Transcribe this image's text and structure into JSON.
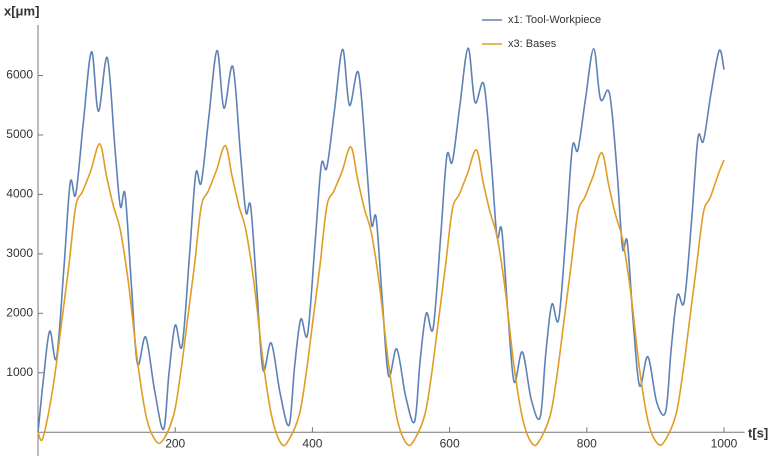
{
  "chart_data": {
    "type": "line",
    "ylabel": "x[μm]",
    "xlabel": "t[s]",
    "xlim": [
      0,
      1030
    ],
    "ylim": [
      -400,
      6850
    ],
    "xticks": [
      200,
      400,
      600,
      800,
      1000
    ],
    "yticks": [
      1000,
      2000,
      3000,
      4000,
      5000,
      6000
    ],
    "legend": "top-right",
    "series": [
      {
        "name": "x1: Tool-Workpiece",
        "color": "#5e81b5",
        "x": [
          0,
          8,
          17,
          27,
          38,
          47,
          55,
          66,
          78,
          88,
          101,
          112,
          120,
          127,
          136,
          145,
          157,
          170,
          183,
          191,
          200,
          210,
          221,
          230,
          238,
          249,
          261,
          271,
          284,
          295,
          303,
          310,
          319,
          328,
          340,
          353,
          366,
          374,
          383,
          393,
          404,
          413,
          421,
          432,
          444,
          454,
          467,
          478,
          486,
          493,
          502,
          511,
          523,
          536,
          549,
          557,
          566,
          576,
          587,
          596,
          604,
          615,
          627,
          637,
          650,
          661,
          669,
          676,
          685,
          694,
          706,
          719,
          732,
          740,
          749,
          759,
          770,
          779,
          787,
          798,
          810,
          820,
          833,
          844,
          852,
          859,
          868,
          877,
          889,
          902,
          915,
          923,
          932,
          942,
          953,
          962,
          970,
          981,
          993,
          1000
        ],
        "values": [
          0,
          900,
          1700,
          1250,
          2800,
          4200,
          4000,
          5200,
          6400,
          5400,
          6300,
          4800,
          3800,
          4000,
          2500,
          1150,
          1600,
          700,
          50,
          1000,
          1800,
          1450,
          3000,
          4350,
          4200,
          5300,
          6420,
          5450,
          6150,
          4700,
          3700,
          3800,
          2400,
          1050,
          1500,
          650,
          120,
          1100,
          1900,
          1650,
          3200,
          4500,
          4450,
          5400,
          6440,
          5500,
          6050,
          4650,
          3500,
          3600,
          2200,
          950,
          1400,
          600,
          180,
          1200,
          2000,
          1750,
          3300,
          4650,
          4550,
          5500,
          6460,
          5550,
          5850,
          4500,
          3300,
          3400,
          2000,
          850,
          1350,
          550,
          250,
          1300,
          2150,
          1900,
          3400,
          4800,
          4750,
          5600,
          6450,
          5600,
          5700,
          4400,
          3100,
          3200,
          1800,
          780,
          1270,
          500,
          350,
          1400,
          2300,
          2200,
          3600,
          4950,
          4900,
          5700,
          6420,
          6100
        ]
      },
      {
        "name": "x3: Bases",
        "color": "#e19c24",
        "x": [
          0,
          6,
          15,
          25,
          35,
          45,
          55,
          65,
          77,
          90,
          100,
          110,
          120,
          132,
          145,
          158,
          172,
          183,
          198,
          208,
          218,
          228,
          238,
          248,
          260,
          273,
          283,
          293,
          303,
          315,
          328,
          341,
          355,
          366,
          381,
          391,
          401,
          411,
          421,
          431,
          443,
          456,
          466,
          476,
          486,
          498,
          511,
          524,
          538,
          549,
          564,
          574,
          584,
          594,
          604,
          614,
          626,
          639,
          649,
          659,
          669,
          681,
          694,
          707,
          721,
          732,
          747,
          757,
          767,
          777,
          787,
          797,
          809,
          822,
          832,
          842,
          852,
          864,
          877,
          890,
          904,
          915,
          930,
          940,
          950,
          960,
          970,
          980,
          992,
          1000
        ],
        "values": [
          0,
          -130,
          300,
          1000,
          1900,
          2800,
          3800,
          4050,
          4400,
          4850,
          4300,
          3800,
          3400,
          2500,
          1200,
          250,
          -150,
          -120,
          300,
          1000,
          1900,
          2800,
          3800,
          4050,
          4400,
          4820,
          4300,
          3800,
          3400,
          2500,
          1200,
          250,
          -200,
          -120,
          300,
          1000,
          1900,
          2800,
          3800,
          4050,
          4380,
          4800,
          4250,
          3750,
          3350,
          2450,
          1150,
          200,
          -200,
          -120,
          300,
          1000,
          1900,
          2800,
          3750,
          4000,
          4350,
          4750,
          4200,
          3700,
          3300,
          2400,
          1100,
          200,
          -200,
          -120,
          300,
          1000,
          1900,
          2800,
          3700,
          3950,
          4300,
          4700,
          4150,
          3650,
          3250,
          2350,
          1050,
          150,
          -200,
          -120,
          300,
          1000,
          1900,
          2800,
          3700,
          3950,
          4350,
          4580
        ]
      }
    ]
  }
}
